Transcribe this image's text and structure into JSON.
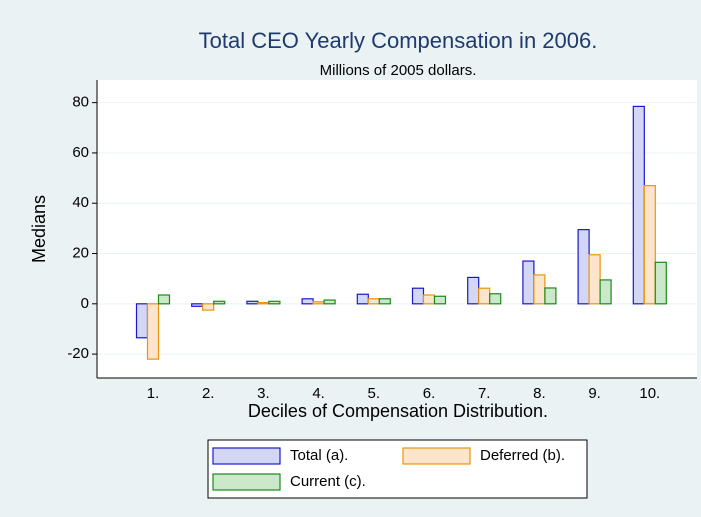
{
  "chart_data": {
    "type": "bar",
    "title": "Total CEO Yearly Compensation in 2006.",
    "subtitle": "Millions of 2005 dollars.",
    "x_label": "Deciles of Compensation Distribution.",
    "y_label": "Medians",
    "categories": [
      "1.",
      "2.",
      "3.",
      "4.",
      "5.",
      "6.",
      "7.",
      "8.",
      "9.",
      "10."
    ],
    "series": [
      {
        "name": "Total (a).",
        "color": "#d3d7f5",
        "stroke": "#1a1acc",
        "values": [
          -13.5,
          -1,
          1,
          2,
          3.8,
          6.2,
          10.5,
          17,
          29.5,
          78.5
        ]
      },
      {
        "name": "Deferred (b).",
        "color": "#fde5cb",
        "stroke": "#e8950d",
        "values": [
          -22,
          -2.5,
          0.5,
          0.8,
          2,
          3.5,
          6.2,
          11.5,
          19.5,
          47
        ]
      },
      {
        "name": "Current (c).",
        "color": "#cbe8cb",
        "stroke": "#1a8a1a",
        "values": [
          3.5,
          1,
          1,
          1.5,
          2,
          3,
          4,
          6.3,
          9.5,
          16.5
        ]
      }
    ],
    "ylim": [
      -29.5,
      89
    ],
    "yticks": [
      -20,
      0,
      20,
      40,
      60,
      80
    ],
    "grid": true,
    "legend": "bottom"
  }
}
